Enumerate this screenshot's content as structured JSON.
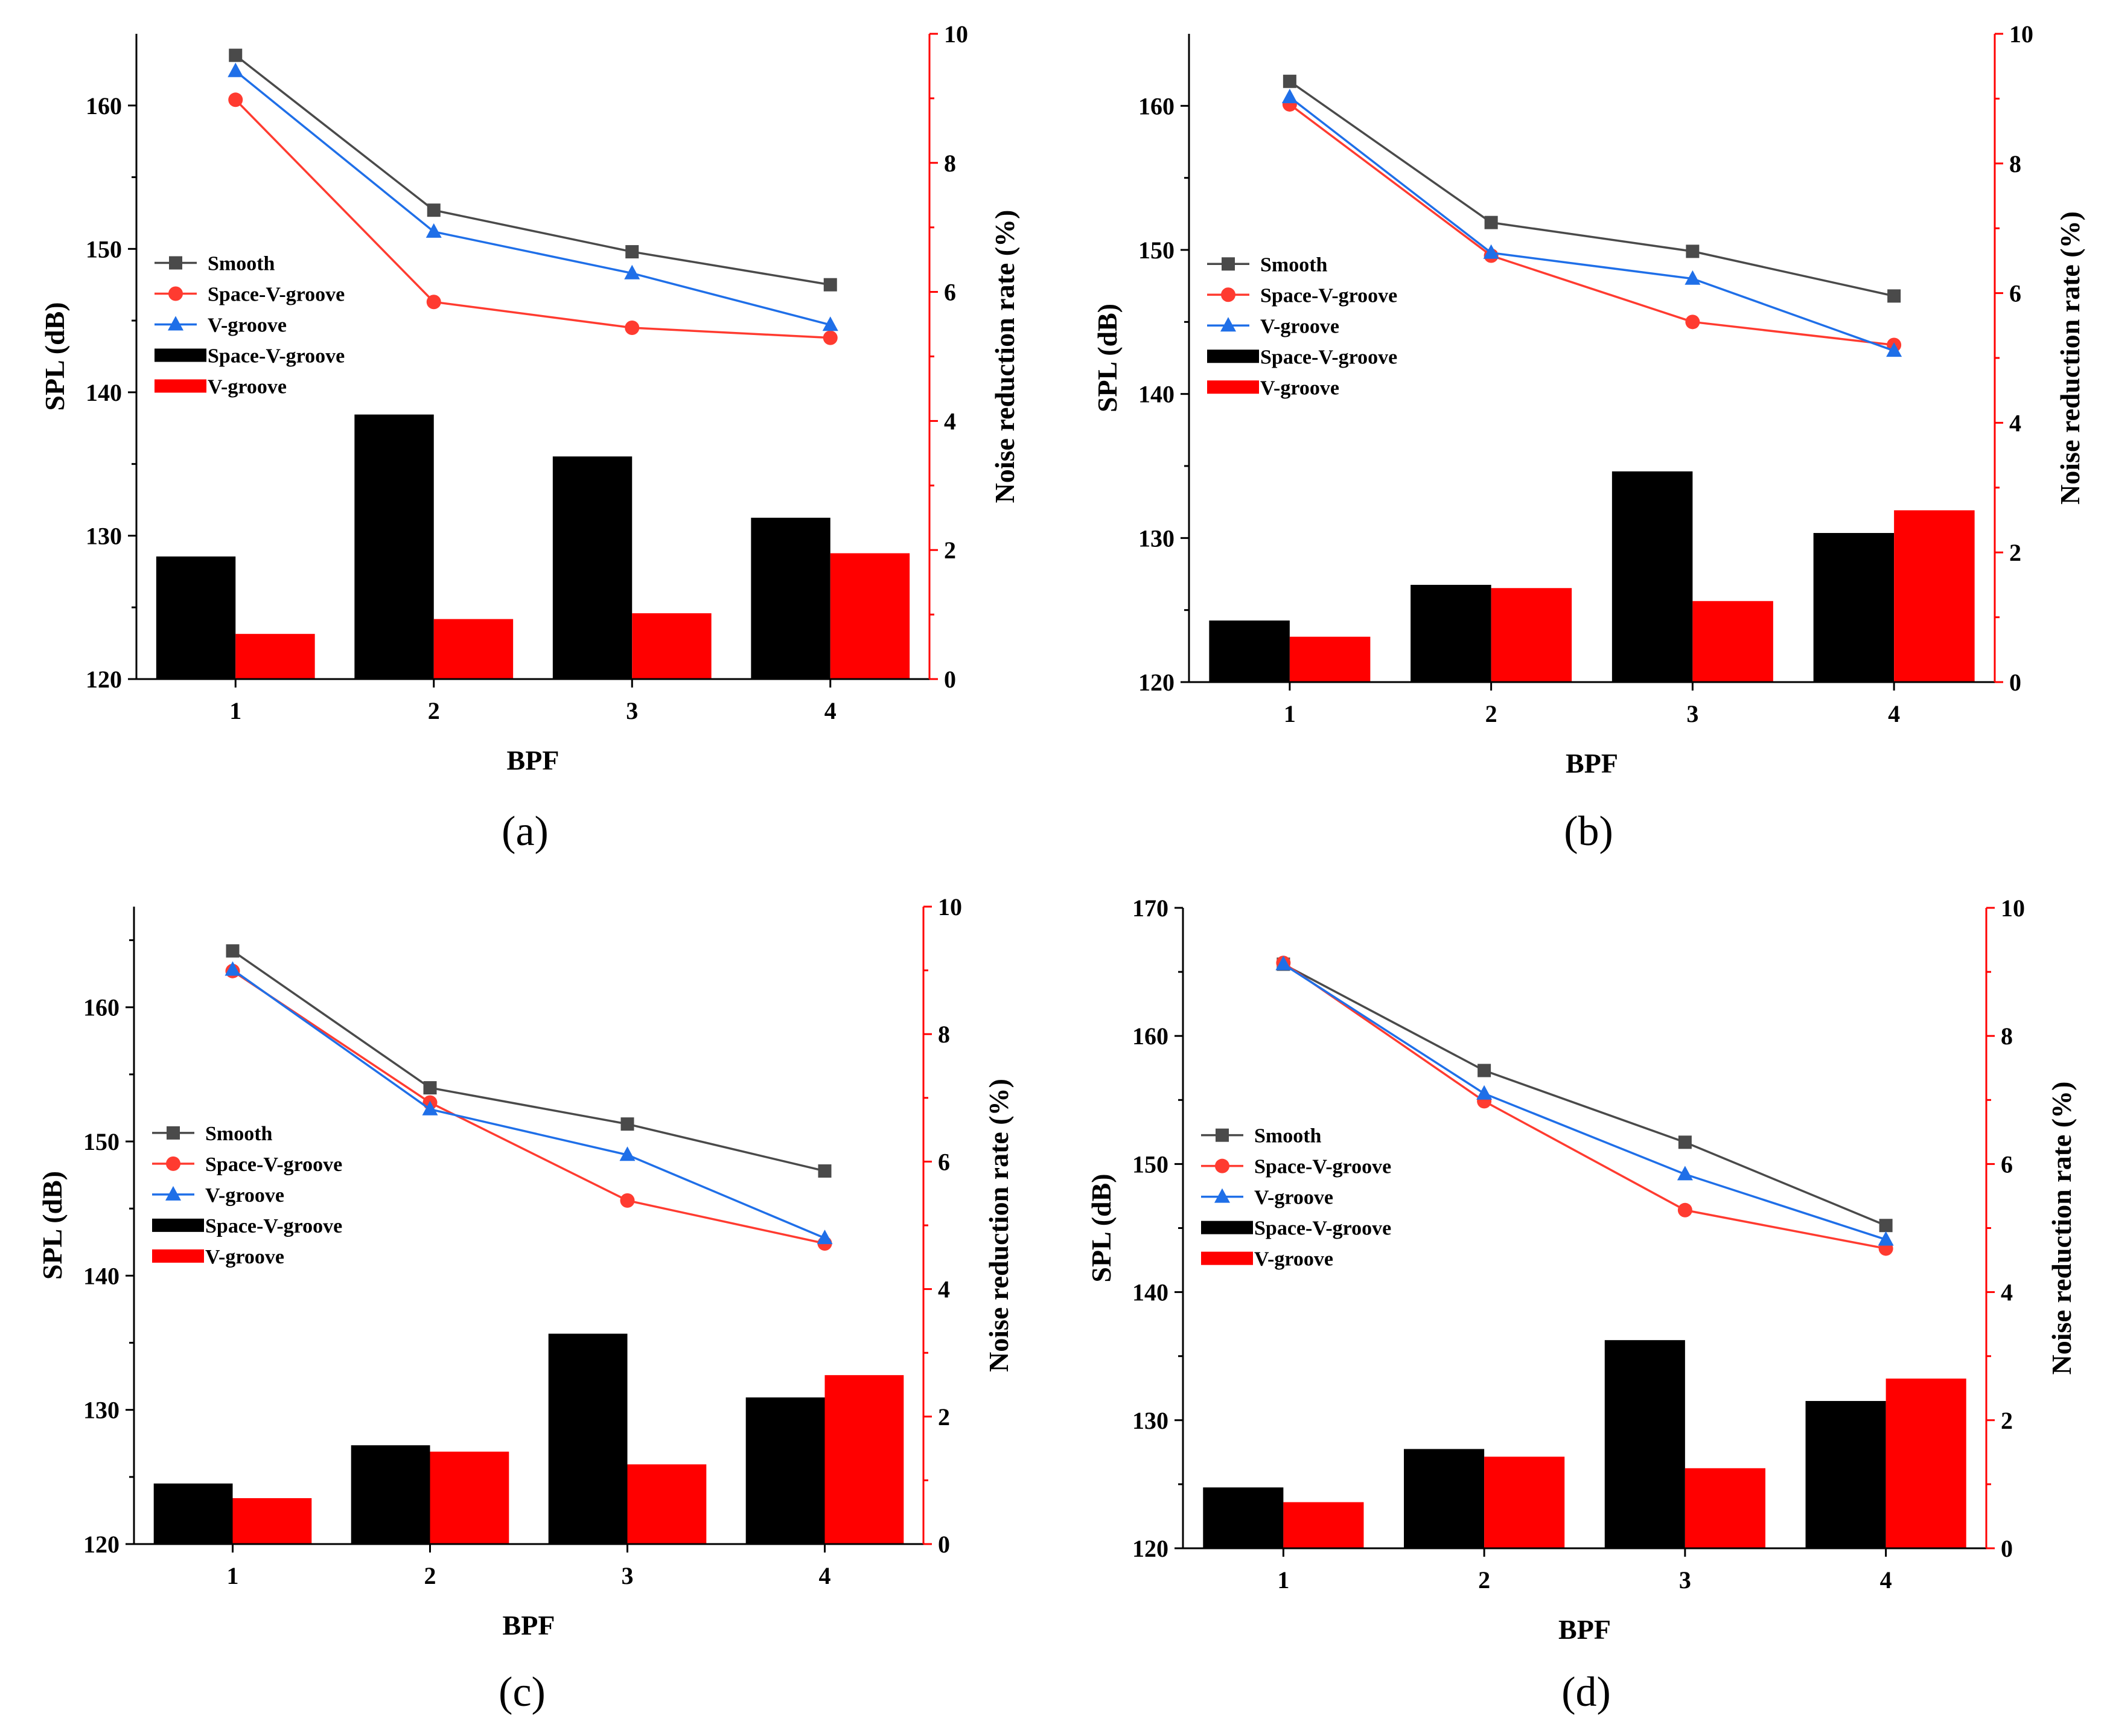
{
  "colors": {
    "smooth": "#4a4a4a",
    "space_v_groove_line": "#ff3b30",
    "v_groove_line": "#1f6fe8",
    "bar_space_v_groove": "#000000",
    "bar_v_groove": "#ff0000",
    "right_axis": "#ff0000"
  },
  "chart_data": [
    {
      "id": "a",
      "panel_label": "(a)",
      "type": "bar+line",
      "xlabel": "BPF",
      "ylabel_left": "SPL (dB)",
      "ylabel_right": "Noise reduction rate (%)",
      "categories": [
        "1",
        "2",
        "3",
        "4"
      ],
      "ylim_left": [
        120,
        165
      ],
      "ylim_right": [
        0,
        10
      ],
      "yticks_left": [
        "120",
        "130",
        "140",
        "150",
        "160"
      ],
      "yticks_right": [
        "0",
        "2",
        "4",
        "6",
        "8",
        "10"
      ],
      "legend_position": "left-middle",
      "line_series": [
        {
          "name": "Smooth",
          "marker": "square",
          "color": "#4a4a4a",
          "values": [
            163.5,
            152.7,
            149.8,
            147.5
          ]
        },
        {
          "name": "Space-V-groove",
          "marker": "circle",
          "color": "#ff3b30",
          "values": [
            160.4,
            146.3,
            144.5,
            143.8
          ]
        },
        {
          "name": "V-groove",
          "marker": "triangle",
          "color": "#1f6fe8",
          "values": [
            162.4,
            151.2,
            148.3,
            144.7
          ]
        }
      ],
      "bar_series": [
        {
          "name": "Space-V-groove",
          "color": "#000000",
          "values": [
            1.9,
            4.1,
            3.45,
            2.5
          ]
        },
        {
          "name": "V-groove",
          "color": "#ff0000",
          "values": [
            0.7,
            0.93,
            1.02,
            1.95
          ]
        }
      ]
    },
    {
      "id": "b",
      "panel_label": "(b)",
      "type": "bar+line",
      "xlabel": "BPF",
      "ylabel_left": "SPL (dB)",
      "ylabel_right": "Noise reduction rate (%)",
      "categories": [
        "1",
        "2",
        "3",
        "4"
      ],
      "ylim_left": [
        120,
        165
      ],
      "ylim_right": [
        0,
        10
      ],
      "yticks_left": [
        "120",
        "130",
        "140",
        "150",
        "160"
      ],
      "yticks_right": [
        "0",
        "2",
        "4",
        "6",
        "8",
        "10"
      ],
      "legend_position": "left-middle",
      "line_series": [
        {
          "name": "Smooth",
          "marker": "square",
          "color": "#4a4a4a",
          "values": [
            161.7,
            151.9,
            149.9,
            146.8
          ]
        },
        {
          "name": "Space-V-groove",
          "marker": "circle",
          "color": "#ff3b30",
          "values": [
            160.1,
            149.6,
            145.0,
            143.4
          ]
        },
        {
          "name": "V-groove",
          "marker": "triangle",
          "color": "#1f6fe8",
          "values": [
            160.6,
            149.8,
            148.0,
            143.0
          ]
        }
      ],
      "bar_series": [
        {
          "name": "Space-V-groove",
          "color": "#000000",
          "values": [
            0.95,
            1.5,
            3.25,
            2.3
          ]
        },
        {
          "name": "V-groove",
          "color": "#ff0000",
          "values": [
            0.7,
            1.45,
            1.25,
            2.65
          ]
        }
      ]
    },
    {
      "id": "c",
      "panel_label": "(c)",
      "type": "bar+line",
      "xlabel": "BPF",
      "ylabel_left": "SPL (dB)",
      "ylabel_right": "Noise reduction rate (%)",
      "categories": [
        "1",
        "2",
        "3",
        "4"
      ],
      "ylim_left": [
        120,
        167.5
      ],
      "ylim_right": [
        0,
        10
      ],
      "yticks_left": [
        "120",
        "130",
        "140",
        "150",
        "160"
      ],
      "yticks_right": [
        "0",
        "2",
        "4",
        "6",
        "8",
        "10"
      ],
      "legend_position": "left-middle",
      "line_series": [
        {
          "name": "Smooth",
          "marker": "square",
          "color": "#4a4a4a",
          "values": [
            164.2,
            154.0,
            151.3,
            147.8
          ]
        },
        {
          "name": "Space-V-groove",
          "marker": "circle",
          "color": "#ff3b30",
          "values": [
            162.7,
            152.9,
            145.6,
            142.4
          ]
        },
        {
          "name": "V-groove",
          "marker": "triangle",
          "color": "#1f6fe8",
          "values": [
            162.8,
            152.4,
            149.0,
            142.8
          ]
        }
      ],
      "bar_series": [
        {
          "name": "Space-V-groove",
          "color": "#000000",
          "values": [
            0.95,
            1.55,
            3.3,
            2.3
          ]
        },
        {
          "name": "V-groove",
          "color": "#ff0000",
          "values": [
            0.72,
            1.45,
            1.25,
            2.65
          ]
        }
      ]
    },
    {
      "id": "d",
      "panel_label": "(d)",
      "type": "bar+line",
      "xlabel": "BPF",
      "ylabel_left": "SPL (dB)",
      "ylabel_right": "Noise reduction rate (%)",
      "categories": [
        "1",
        "2",
        "3",
        "4"
      ],
      "ylim_left": [
        120,
        170
      ],
      "ylim_right": [
        0,
        10
      ],
      "yticks_left": [
        "120",
        "130",
        "140",
        "150",
        "160",
        "170"
      ],
      "yticks_right": [
        "0",
        "2",
        "4",
        "6",
        "8",
        "10"
      ],
      "legend_position": "left-middle",
      "line_series": [
        {
          "name": "Smooth",
          "marker": "square",
          "color": "#4a4a4a",
          "values": [
            165.6,
            157.3,
            151.7,
            145.2
          ]
        },
        {
          "name": "Space-V-groove",
          "marker": "circle",
          "color": "#ff3b30",
          "values": [
            165.7,
            154.9,
            146.4,
            143.4
          ]
        },
        {
          "name": "V-groove",
          "marker": "triangle",
          "color": "#1f6fe8",
          "values": [
            165.6,
            155.5,
            149.2,
            144.1
          ]
        }
      ],
      "bar_series": [
        {
          "name": "Space-V-groove",
          "color": "#000000",
          "values": [
            0.95,
            1.55,
            3.25,
            2.3
          ]
        },
        {
          "name": "V-groove",
          "color": "#ff0000",
          "values": [
            0.72,
            1.43,
            1.25,
            2.65
          ]
        }
      ]
    }
  ]
}
